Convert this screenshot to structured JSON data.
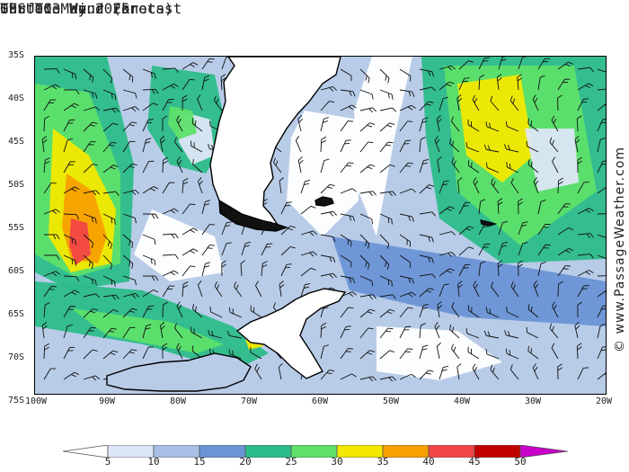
{
  "header": {
    "title": "Surface Wind (knots)",
    "subtitle": "GFS 003 Hour Forecast",
    "date": "Thu 01 May 2025",
    "time": "09 UTC"
  },
  "credit": "© www.PassageWeather.com",
  "axes": {
    "lat_labels": [
      "35S",
      "40S",
      "45S",
      "50S",
      "55S",
      "60S",
      "65S",
      "70S",
      "75S"
    ],
    "lon_labels": [
      "100W",
      "90W",
      "80W",
      "70W",
      "60W",
      "50W",
      "40W",
      "30W",
      "20W"
    ]
  },
  "legend": {
    "values": [
      "5",
      "10",
      "15",
      "20",
      "25",
      "30",
      "35",
      "40",
      "45",
      "50"
    ],
    "colors": [
      "#ffffff",
      "#dde6f6",
      "#a8c0e6",
      "#6a94d6",
      "#2cbc8a",
      "#5ee06a",
      "#f4e800",
      "#f7a000",
      "#f24646",
      "#c20000",
      "#c800c8"
    ]
  },
  "map": {
    "wind_field": "wind speed shading and barbs",
    "coastlines": [
      "south-america-south",
      "tierra-del-fuego",
      "falklands",
      "south-georgia",
      "antarctic-peninsula"
    ]
  }
}
